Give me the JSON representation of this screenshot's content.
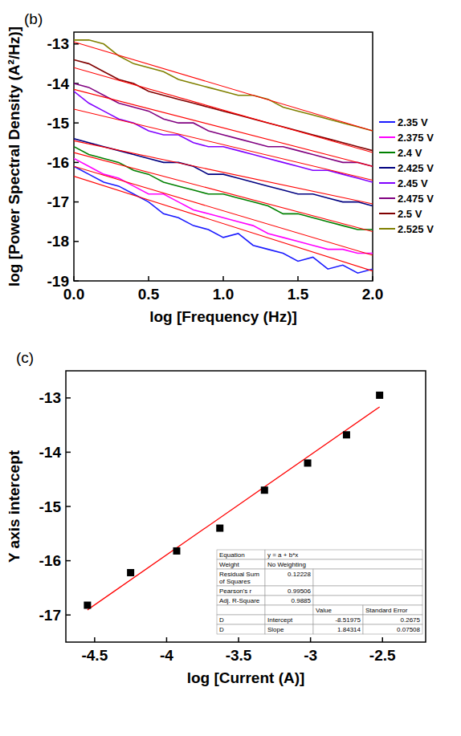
{
  "chart_data": [
    {
      "type": "line",
      "panel_label": "(b)",
      "x_label": "log [Frequency (Hz)]",
      "y_label": "log [Power Spectral Density (A²/Hz)]",
      "x": [
        0,
        0.1,
        0.2,
        0.3,
        0.4,
        0.5,
        0.6,
        0.7,
        0.8,
        0.9,
        1.0,
        1.1,
        1.2,
        1.3,
        1.4,
        1.5,
        1.6,
        1.7,
        1.8,
        1.9,
        2.0
      ],
      "fit_x": [
        0,
        2
      ],
      "xlim": [
        0,
        2
      ],
      "ylim": [
        -19,
        -12.7
      ],
      "xticks": [
        {
          "value": 0,
          "label": "0.0"
        },
        {
          "value": 0.5,
          "label": "0.5"
        },
        {
          "value": 1,
          "label": "1.0"
        },
        {
          "value": 1.5,
          "label": "1.5"
        },
        {
          "value": 2,
          "label": "2.0"
        }
      ],
      "yticks": [
        -19,
        -18,
        -17,
        -16,
        -15,
        -14,
        -13
      ],
      "grid": false,
      "legend": "right",
      "series": [
        {
          "name": "2.35 V",
          "color": "#1a1aff",
          "values": [
            -16.1,
            -16.3,
            -16.5,
            -16.6,
            -16.8,
            -17.0,
            -17.3,
            -17.4,
            -17.6,
            -17.7,
            -17.9,
            -17.8,
            -18.1,
            -18.2,
            -18.3,
            -18.5,
            -18.4,
            -18.7,
            -18.6,
            -18.8,
            -18.7
          ],
          "fit_values": [
            -16.35,
            -18.75
          ]
        },
        {
          "name": "2.375 V",
          "color": "#ff00ff",
          "values": [
            -15.9,
            -16.1,
            -16.3,
            -16.4,
            -16.6,
            -16.8,
            -16.8,
            -17.0,
            -17.2,
            -17.3,
            -17.4,
            -17.5,
            -17.6,
            -17.8,
            -17.9,
            -18.0,
            -18.1,
            -18.2,
            -18.2,
            -18.3,
            -18.3
          ],
          "fit_values": [
            -16.1,
            -18.35
          ]
        },
        {
          "name": "2.4 V",
          "color": "#008000",
          "values": [
            -15.6,
            -15.8,
            -15.9,
            -16.0,
            -16.2,
            -16.3,
            -16.5,
            -16.6,
            -16.7,
            -16.8,
            -16.8,
            -16.9,
            -17.0,
            -17.1,
            -17.3,
            -17.3,
            -17.4,
            -17.5,
            -17.6,
            -17.7,
            -17.7
          ],
          "fit_values": [
            -15.75,
            -17.75
          ]
        },
        {
          "name": "2.425 V",
          "color": "#000080",
          "values": [
            -15.4,
            -15.5,
            -15.6,
            -15.7,
            -15.8,
            -15.9,
            -16.0,
            -16.0,
            -16.1,
            -16.3,
            -16.3,
            -16.4,
            -16.5,
            -16.6,
            -16.7,
            -16.8,
            -16.8,
            -16.9,
            -17.0,
            -17.0,
            -17.1
          ],
          "fit_values": [
            -15.45,
            -17.05
          ]
        },
        {
          "name": "2.45 V",
          "color": "#8000ff",
          "values": [
            -14.2,
            -14.5,
            -14.7,
            -14.9,
            -15.0,
            -15.2,
            -15.3,
            -15.3,
            -15.5,
            -15.6,
            -15.6,
            -15.7,
            -15.8,
            -15.9,
            -16.0,
            -16.1,
            -16.2,
            -16.2,
            -16.3,
            -16.4,
            -16.5
          ],
          "fit_values": [
            -14.65,
            -16.45
          ]
        },
        {
          "name": "2.475 V",
          "color": "#800080",
          "values": [
            -14.0,
            -14.1,
            -14.3,
            -14.5,
            -14.6,
            -14.7,
            -14.9,
            -15.0,
            -15.0,
            -15.2,
            -15.3,
            -15.4,
            -15.5,
            -15.6,
            -15.6,
            -15.7,
            -15.8,
            -15.9,
            -16.0,
            -16.0,
            -16.1
          ],
          "fit_values": [
            -14.15,
            -16.1
          ]
        },
        {
          "name": "2.5 V",
          "color": "#800000",
          "values": [
            -13.4,
            -13.5,
            -13.7,
            -13.9,
            -14.0,
            -14.2,
            -14.3,
            -14.4,
            -14.5,
            -14.6,
            -14.7,
            -14.8,
            -14.9,
            -15.0,
            -15.1,
            -15.2,
            -15.3,
            -15.4,
            -15.5,
            -15.6,
            -15.7
          ],
          "fit_values": [
            -13.6,
            -15.75
          ]
        },
        {
          "name": "2.525 V",
          "color": "#808000",
          "values": [
            -12.9,
            -12.9,
            -13.0,
            -13.3,
            -13.5,
            -13.6,
            -13.7,
            -13.9,
            -14.0,
            -14.1,
            -14.2,
            -14.3,
            -14.3,
            -14.4,
            -14.6,
            -14.7,
            -14.8,
            -14.9,
            -15.0,
            -15.1,
            -15.2
          ],
          "fit_values": [
            -12.95,
            -15.2
          ]
        }
      ]
    },
    {
      "type": "scatter",
      "panel_label": "(c)",
      "x_label": "log [Current (A)]",
      "y_label": "Y axis intercept",
      "x": [
        -4.55,
        -4.25,
        -3.93,
        -3.63,
        -3.32,
        -3.02,
        -2.75,
        -2.52
      ],
      "values": [
        -16.82,
        -16.22,
        -15.82,
        -15.4,
        -14.7,
        -14.2,
        -13.68,
        -12.95
      ],
      "color": "#000000",
      "marker": "square",
      "fit_color": "#ff0000",
      "xlim": [
        -4.7,
        -2.2
      ],
      "ylim": [
        -17.5,
        -12.5
      ],
      "xticks": [
        -4.5,
        -4,
        -3.5,
        -3,
        -2.5
      ],
      "yticks": [
        -17,
        -16,
        -15,
        -14,
        -13
      ],
      "grid": false,
      "fit_table": {
        "rows": [
          [
            "Equation",
            "y = a + b*x"
          ],
          [
            "Weight",
            "No Weighting"
          ]
        ],
        "stats": [
          {
            "label": "Residual Sum of Squares",
            "value": 0.12228
          },
          {
            "label": "Pearson's r",
            "value": 0.99506
          },
          {
            "label": "Adj. R-Square",
            "value": 0.9885
          }
        ],
        "columns": [
          "Value",
          "Standard Error"
        ],
        "params": [
          {
            "dataset": "D",
            "name": "Intercept",
            "value": -8.51975,
            "error": 0.2675
          },
          {
            "dataset": "D",
            "name": "Slope",
            "value": 1.84314,
            "error": 0.07508
          }
        ]
      }
    }
  ]
}
